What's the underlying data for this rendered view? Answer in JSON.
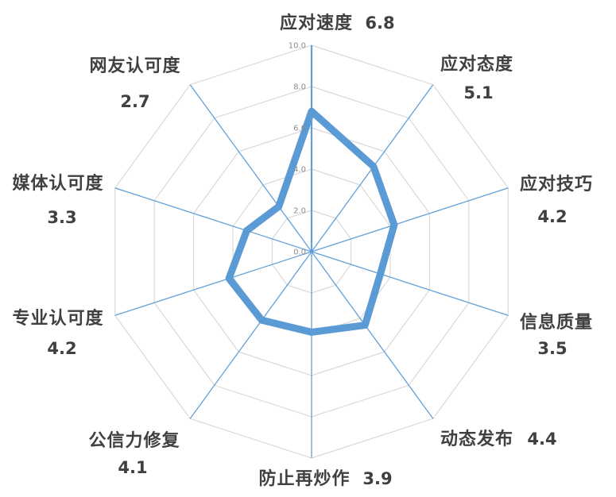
{
  "chart_data": {
    "type": "radar",
    "title": "",
    "categories": [
      "应对速度",
      "应对态度",
      "应对技巧",
      "信息质量",
      "动态发布",
      "防止再炒作",
      "公信力修复",
      "专业认可度",
      "媒体认可度",
      "网友认可度"
    ],
    "values": [
      6.8,
      5.1,
      4.2,
      3.5,
      4.4,
      3.9,
      4.1,
      4.2,
      3.3,
      2.7
    ],
    "value_labels": [
      "6.8",
      "5.1",
      "4.2",
      "3.5",
      "4.4",
      "3.9",
      "4.1",
      "4.2",
      "3.3",
      "2.7"
    ],
    "axis": {
      "min": 0,
      "max": 10,
      "step": 2,
      "tick_labels": [
        "0.0",
        "2.0",
        "4.0",
        "6.0",
        "8.0",
        "10.0"
      ]
    },
    "grid": true,
    "legend": "none",
    "colors": {
      "series": "#5B9BD5",
      "spoke": "#5B9BD5",
      "ring": "#D9D9D9",
      "label": "#404040",
      "value": "#404040",
      "tick": "#8C8C8C",
      "background": "#FFFFFF"
    }
  }
}
